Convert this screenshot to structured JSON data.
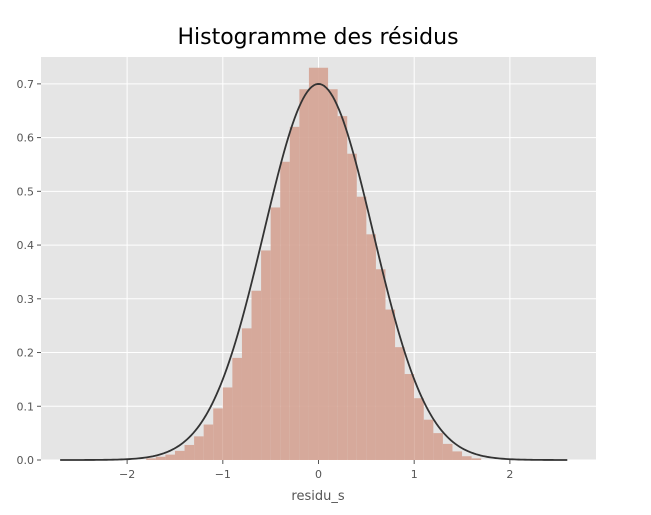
{
  "chart_data": {
    "type": "bar",
    "title": "Histogramme des résidus",
    "xlabel": "residu_s",
    "ylabel": "",
    "xlim": [
      -2.9,
      2.9
    ],
    "ylim": [
      0,
      0.75
    ],
    "grid": true,
    "colors": {
      "background": "#e5e5e5",
      "grid": "#ffffff",
      "bars": "#d4a292",
      "curve": "#333333",
      "text": "#555555",
      "title": "#000000"
    },
    "xticks": [
      {
        "value": -2,
        "label": "−2"
      },
      {
        "value": -1,
        "label": "−1"
      },
      {
        "value": 0,
        "label": "0"
      },
      {
        "value": 1,
        "label": "1"
      },
      {
        "value": 2,
        "label": "2"
      }
    ],
    "yticks": [
      {
        "value": 0.0,
        "label": "0.0"
      },
      {
        "value": 0.1,
        "label": "0.1"
      },
      {
        "value": 0.2,
        "label": "0.2"
      },
      {
        "value": 0.3,
        "label": "0.3"
      },
      {
        "value": 0.4,
        "label": "0.4"
      },
      {
        "value": 0.5,
        "label": "0.5"
      },
      {
        "value": 0.6,
        "label": "0.6"
      },
      {
        "value": 0.7,
        "label": "0.7"
      }
    ],
    "bins": {
      "start": -1.8,
      "width": 0.1,
      "heights": [
        0.003,
        0.006,
        0.01,
        0.017,
        0.028,
        0.044,
        0.066,
        0.096,
        0.135,
        0.19,
        0.245,
        0.315,
        0.39,
        0.47,
        0.555,
        0.62,
        0.69,
        0.73,
        0.73,
        0.69,
        0.64,
        0.57,
        0.49,
        0.42,
        0.355,
        0.28,
        0.21,
        0.16,
        0.115,
        0.075,
        0.05,
        0.03,
        0.016,
        0.007,
        0.003
      ]
    },
    "curve": {
      "type": "normal-pdf",
      "mean": 0.0,
      "sd": 0.57,
      "xrange": [
        -2.7,
        2.6
      ]
    }
  }
}
